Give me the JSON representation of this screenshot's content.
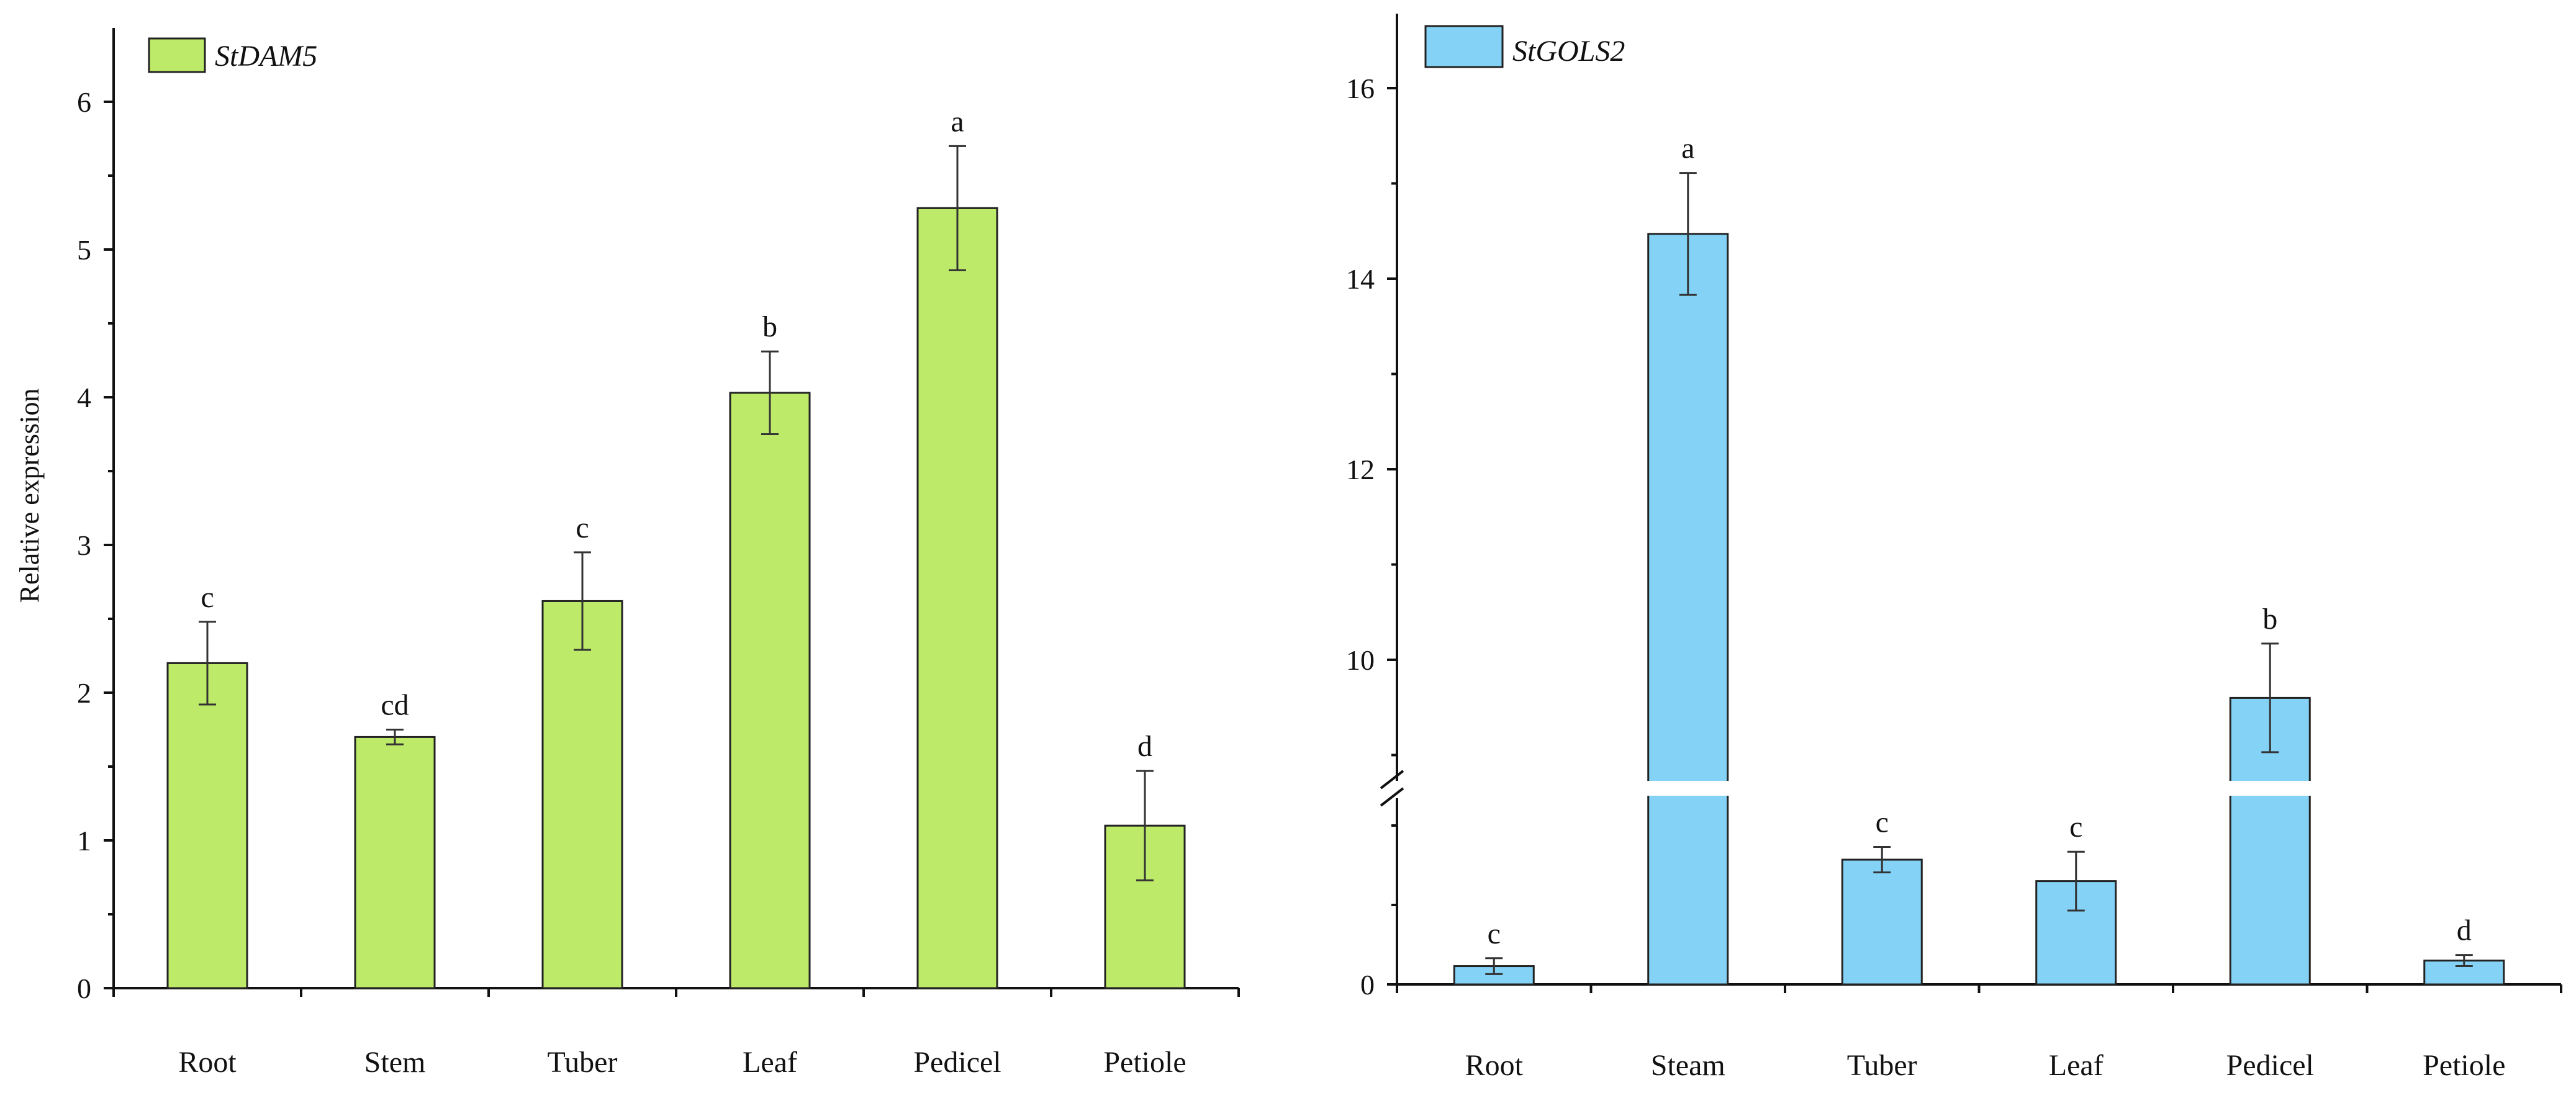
{
  "chart_data": [
    {
      "type": "bar",
      "legend": {
        "label": "StDAM5",
        "position": "top-left",
        "color": "#BDEA69"
      },
      "ylabel": "Relative expression",
      "xlabel": "",
      "ylim": [
        0,
        6.5
      ],
      "yticks": [
        0,
        1,
        2,
        3,
        4,
        5,
        6
      ],
      "ytick_labels": [
        "0",
        "1",
        "2",
        "3",
        "4",
        "5",
        "6"
      ],
      "categories": [
        "Root",
        "Stem",
        "Tuber",
        "Leaf",
        "Pedicel",
        "Petiole"
      ],
      "values": [
        2.2,
        1.7,
        2.62,
        4.03,
        5.28,
        1.1
      ],
      "errors": [
        0.28,
        0.05,
        0.33,
        0.28,
        0.42,
        0.37
      ],
      "letters": [
        "c",
        "cd",
        "c",
        "b",
        "a",
        "d"
      ]
    },
    {
      "type": "bar",
      "legend": {
        "label": "StGOLS2",
        "position": "top-left",
        "color": "#84D2F6"
      },
      "ylabel": "",
      "xlabel": "",
      "axis_break": {
        "lower_range": [
          0,
          2.8
        ],
        "upper_range": [
          8.4,
          17
        ]
      },
      "yticks": [
        0,
        10,
        12,
        14,
        16
      ],
      "ytick_labels": [
        "0",
        "10",
        "12",
        "14",
        "16"
      ],
      "categories": [
        "Root",
        "Steam",
        "Tuber",
        "Leaf",
        "Pedicel",
        "Petiole"
      ],
      "values": [
        0.23,
        14.47,
        1.57,
        1.3,
        9.6,
        0.3
      ],
      "errors": [
        0.1,
        0.64,
        0.16,
        0.37,
        0.57,
        0.07
      ],
      "letters": [
        "c",
        "a",
        "c",
        "c",
        "b",
        "d"
      ]
    }
  ]
}
